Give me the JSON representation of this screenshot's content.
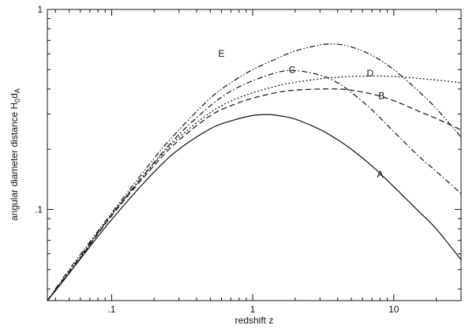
{
  "chart_data": {
    "type": "line",
    "xlabel": "redshift z",
    "ylabel_main": "angular diameter distance H",
    "ylabel_sub1": "0",
    "ylabel_mid": "d",
    "ylabel_sub2": "A",
    "x_scale": "log",
    "y_scale": "log",
    "xlim": [
      0.035,
      30
    ],
    "ylim": [
      0.035,
      1
    ],
    "x_ticks": [
      {
        "value": 0.1,
        "label": ".1"
      },
      {
        "value": 1,
        "label": "1"
      },
      {
        "value": 10,
        "label": "10"
      }
    ],
    "y_ticks": [
      {
        "value": 0.1,
        "label": ".1"
      },
      {
        "value": 1,
        "label": "1"
      }
    ],
    "grid": false,
    "legend": "none",
    "series": [
      {
        "name": "A",
        "style": "solid",
        "x": [
          0.035,
          0.05,
          0.1,
          0.2,
          0.3,
          0.5,
          0.7,
          1.0,
          1.3,
          1.6,
          2.0,
          3.0,
          4.0,
          5.0,
          7.0,
          10.0,
          15.0,
          20.0,
          30.0
        ],
        "y": [
          0.035,
          0.048,
          0.089,
          0.154,
          0.2,
          0.253,
          0.277,
          0.295,
          0.298,
          0.293,
          0.283,
          0.251,
          0.223,
          0.2,
          0.165,
          0.13,
          0.098,
          0.08,
          0.056
        ]
      },
      {
        "name": "B",
        "style": "dashed",
        "x": [
          0.035,
          0.05,
          0.1,
          0.2,
          0.3,
          0.5,
          0.7,
          1.0,
          1.5,
          2.0,
          3.0,
          4.0,
          5.0,
          7.0,
          10.0,
          15.0,
          20.0,
          30.0
        ],
        "y": [
          0.035,
          0.048,
          0.093,
          0.166,
          0.222,
          0.294,
          0.33,
          0.36,
          0.385,
          0.395,
          0.4,
          0.4,
          0.395,
          0.378,
          0.35,
          0.31,
          0.285,
          0.25
        ]
      },
      {
        "name": "C",
        "style": "dash-dot",
        "x": [
          0.035,
          0.05,
          0.1,
          0.2,
          0.3,
          0.5,
          0.7,
          1.0,
          1.5,
          2.0,
          3.0,
          4.0,
          5.0,
          7.0,
          10.0,
          15.0,
          20.0,
          30.0
        ],
        "y": [
          0.035,
          0.049,
          0.094,
          0.172,
          0.237,
          0.33,
          0.39,
          0.44,
          0.485,
          0.495,
          0.47,
          0.43,
          0.385,
          0.315,
          0.245,
          0.185,
          0.155,
          0.12
        ]
      },
      {
        "name": "D",
        "style": "dotted",
        "x": [
          0.035,
          0.05,
          0.1,
          0.2,
          0.3,
          0.5,
          0.7,
          1.0,
          1.5,
          2.0,
          3.0,
          4.0,
          5.0,
          7.0,
          10.0,
          15.0,
          20.0,
          30.0
        ],
        "y": [
          0.035,
          0.048,
          0.094,
          0.17,
          0.229,
          0.305,
          0.348,
          0.383,
          0.415,
          0.432,
          0.45,
          0.458,
          0.462,
          0.465,
          0.462,
          0.452,
          0.444,
          0.43
        ]
      },
      {
        "name": "E",
        "style": "dash-dot-dot",
        "x": [
          0.035,
          0.05,
          0.1,
          0.2,
          0.3,
          0.5,
          0.7,
          1.0,
          1.5,
          2.0,
          3.0,
          3.6,
          4.0,
          5.0,
          7.0,
          10.0,
          15.0,
          20.0,
          30.0
        ],
        "y": [
          0.035,
          0.05,
          0.096,
          0.18,
          0.25,
          0.36,
          0.43,
          0.5,
          0.57,
          0.62,
          0.665,
          0.672,
          0.67,
          0.65,
          0.59,
          0.5,
          0.39,
          0.32,
          0.23
        ]
      }
    ],
    "annotations": [
      {
        "text": "E",
        "x": 0.6,
        "y": 0.6
      },
      {
        "text": "C",
        "x": 1.9,
        "y": 0.5
      },
      {
        "text": "D",
        "x": 6.8,
        "y": 0.48
      },
      {
        "text": "B",
        "x": 8.2,
        "y": 0.37
      },
      {
        "text": "A",
        "x": 8.0,
        "y": 0.15
      }
    ]
  }
}
